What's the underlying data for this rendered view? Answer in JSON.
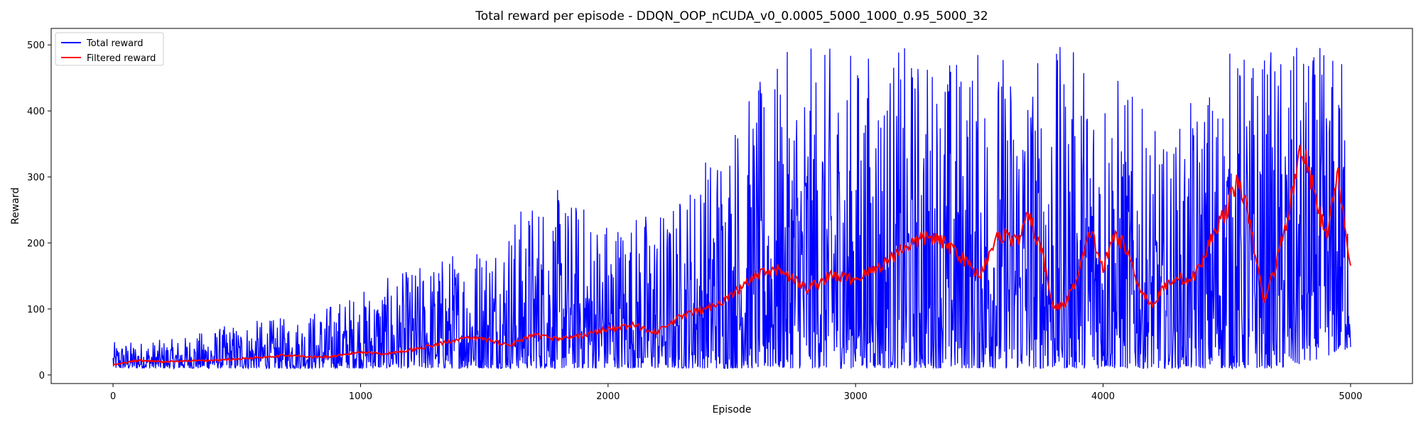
{
  "chart_data": {
    "type": "line",
    "title": "Total reward per episode - DDQN_OOP_nCUDA_v0_0.0005_5000_1000_0.95_5000_32",
    "xlabel": "Episode",
    "ylabel": "Reward",
    "xlim": [
      -250,
      5250
    ],
    "ylim": [
      -13,
      525
    ],
    "xticks": [
      0,
      1000,
      2000,
      3000,
      4000,
      5000
    ],
    "yticks": [
      0,
      100,
      200,
      300,
      400,
      500
    ],
    "xtick_labels": [
      "0",
      "1000",
      "2000",
      "3000",
      "4000",
      "5000"
    ],
    "ytick_labels": [
      "0",
      "100",
      "200",
      "300",
      "400",
      "500"
    ],
    "grid": false,
    "legend_position": "top-left",
    "n_episodes": 5000,
    "series": [
      {
        "name": "Total reward",
        "color": "#0000ff",
        "style": "noisy per-episode reward",
        "envelope": {
          "x": [
            0,
            250,
            500,
            750,
            1000,
            1250,
            1500,
            1750,
            2000,
            2250,
            2500,
            2750,
            3000,
            3250,
            3500,
            3750,
            4000,
            4250,
            4500,
            4750,
            5000
          ],
          "min": [
            10,
            10,
            10,
            10,
            10,
            10,
            10,
            10,
            10,
            10,
            10,
            10,
            10,
            10,
            10,
            10,
            10,
            10,
            10,
            10,
            40
          ],
          "max": [
            50,
            55,
            80,
            90,
            130,
            170,
            215,
            290,
            250,
            260,
            405,
            500,
            500,
            500,
            500,
            500,
            500,
            350,
            500,
            500,
            500
          ]
        }
      },
      {
        "name": "Filtered reward",
        "color": "#ff0000",
        "style": "smoothed reward",
        "x": [
          0,
          100,
          200,
          300,
          400,
          500,
          600,
          700,
          800,
          900,
          1000,
          1100,
          1200,
          1300,
          1400,
          1500,
          1600,
          1700,
          1800,
          1900,
          2000,
          2100,
          2200,
          2300,
          2400,
          2500,
          2600,
          2700,
          2800,
          2900,
          3000,
          3100,
          3200,
          3300,
          3400,
          3500,
          3550,
          3600,
          3650,
          3700,
          3750,
          3800,
          3850,
          3900,
          3950,
          4000,
          4050,
          4100,
          4150,
          4200,
          4250,
          4300,
          4350,
          4400,
          4450,
          4500,
          4550,
          4600,
          4650,
          4700,
          4750,
          4800,
          4850,
          4900,
          4950,
          5000
        ],
        "values": [
          15,
          22,
          20,
          21,
          22,
          24,
          27,
          30,
          27,
          28,
          35,
          32,
          38,
          45,
          55,
          55,
          45,
          60,
          55,
          60,
          70,
          75,
          65,
          90,
          100,
          120,
          150,
          160,
          130,
          150,
          145,
          165,
          195,
          210,
          190,
          150,
          195,
          215,
          200,
          240,
          190,
          100,
          110,
          150,
          220,
          160,
          215,
          185,
          130,
          105,
          135,
          150,
          140,
          170,
          220,
          250,
          300,
          215,
          110,
          170,
          245,
          350,
          280,
          210,
          300,
          160
        ]
      }
    ]
  }
}
